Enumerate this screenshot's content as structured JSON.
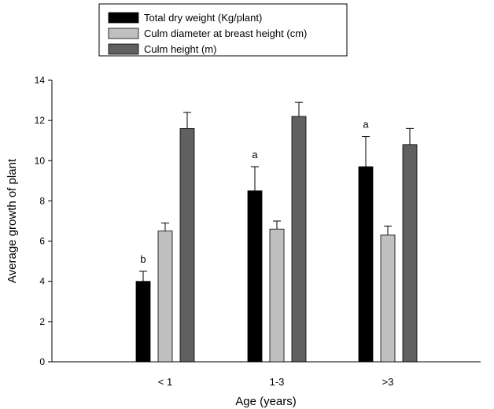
{
  "chart_data": {
    "type": "bar",
    "title": "",
    "xlabel": "Age (years)",
    "ylabel": "Average growth of plant",
    "categories": [
      "< 1",
      "1-3",
      ">3"
    ],
    "ylim": [
      0,
      14
    ],
    "yticks": [
      "0",
      "2",
      "4",
      "6",
      "8",
      "10",
      "12",
      "14"
    ],
    "grid": false,
    "legend_position": "top-center",
    "series": [
      {
        "name": "Total dry weight (Kg/plant)",
        "color": "#000000",
        "values": [
          4.0,
          8.5,
          9.7
        ],
        "errors": [
          0.5,
          1.2,
          1.5
        ],
        "annotations": [
          "b",
          "a",
          "a"
        ]
      },
      {
        "name": "Culm diameter at breast height (cm)",
        "color": "#c0c0c0",
        "values": [
          6.5,
          6.6,
          6.3
        ],
        "errors": [
          0.4,
          0.4,
          0.45
        ],
        "annotations": [
          "",
          "",
          ""
        ]
      },
      {
        "name": "Culm height (m)",
        "color": "#606060",
        "values": [
          11.6,
          12.2,
          10.8
        ],
        "errors": [
          0.8,
          0.7,
          0.8
        ],
        "annotations": [
          "",
          "",
          ""
        ]
      }
    ]
  }
}
